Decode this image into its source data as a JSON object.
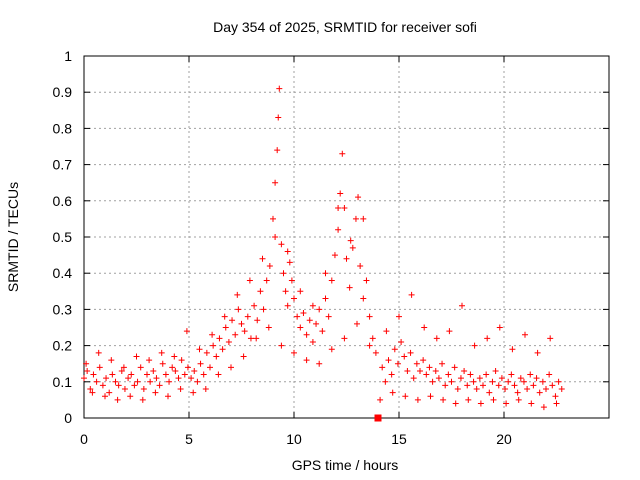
{
  "chart_data": {
    "type": "scatter",
    "title": "Day 354 of 2025, SRMTID for receiver sofi",
    "xlabel": "GPS time / hours",
    "ylabel": "SRMTID / TECUs",
    "xlim": [
      0,
      25
    ],
    "ylim": [
      0,
      1
    ],
    "xticks": [
      0,
      5,
      10,
      15,
      20
    ],
    "xtick_labels": [
      "0",
      "5",
      "10",
      "15",
      "20"
    ],
    "yticks": [
      0,
      0.1,
      0.2,
      0.3,
      0.4,
      0.5,
      0.6,
      0.7,
      0.8,
      0.9,
      1
    ],
    "ytick_labels": [
      "0",
      "0.1",
      "0.2",
      "0.3",
      "0.4",
      "0.5",
      "0.6",
      "0.7",
      "0.8",
      "0.9",
      "1"
    ],
    "grid": true,
    "marker": "plus",
    "color": "#ff0000",
    "series": [
      {
        "name": "SRMTID",
        "x": [
          0.0,
          0.15,
          0.3,
          0.45,
          0.6,
          0.75,
          0.9,
          1.05,
          1.2,
          1.35,
          1.5,
          1.65,
          1.8,
          1.95,
          2.1,
          2.25,
          2.4,
          2.55,
          2.7,
          2.85,
          3.0,
          3.15,
          3.3,
          3.45,
          3.6,
          3.75,
          3.9,
          4.05,
          4.2,
          4.35,
          4.5,
          4.65,
          4.8,
          4.95,
          5.1,
          5.25,
          5.4,
          5.55,
          5.7,
          5.85,
          6.0,
          6.15,
          6.3,
          6.45,
          6.6,
          6.75,
          6.9,
          7.05,
          7.2,
          7.35,
          7.5,
          7.65,
          7.8,
          7.95,
          8.1,
          8.25,
          8.4,
          8.55,
          8.7,
          8.85,
          9.0,
          9.1,
          9.2,
          9.25,
          9.3,
          9.4,
          9.5,
          9.6,
          9.7,
          9.8,
          9.9,
          10.0,
          10.15,
          10.3,
          10.45,
          10.6,
          10.75,
          10.9,
          11.05,
          11.2,
          11.35,
          11.5,
          11.65,
          11.8,
          11.95,
          12.1,
          12.2,
          12.3,
          12.4,
          12.5,
          12.65,
          12.8,
          12.95,
          13.05,
          13.15,
          13.3,
          13.45,
          13.6,
          13.75,
          13.9,
          14.0,
          14.2,
          14.35,
          14.5,
          14.65,
          14.8,
          14.95,
          15.1,
          15.25,
          15.4,
          15.55,
          15.7,
          15.85,
          16.0,
          16.15,
          16.3,
          16.45,
          16.6,
          16.75,
          16.9,
          17.05,
          17.2,
          17.35,
          17.5,
          17.65,
          17.8,
          17.95,
          18.1,
          18.25,
          18.4,
          18.55,
          18.7,
          18.85,
          19.0,
          19.15,
          19.3,
          19.45,
          19.6,
          19.75,
          19.9,
          20.05,
          20.2,
          20.35,
          20.5,
          20.65,
          20.8,
          20.95,
          21.1,
          21.25,
          21.4,
          21.55,
          21.7,
          21.85,
          22.0,
          22.15,
          22.3,
          22.45,
          22.6,
          22.75,
          0.1,
          0.4,
          0.7,
          1.0,
          1.3,
          1.6,
          1.9,
          2.2,
          2.5,
          2.8,
          3.1,
          3.4,
          3.7,
          4.0,
          4.3,
          4.6,
          4.9,
          5.2,
          5.5,
          5.8,
          6.1,
          6.4,
          6.7,
          7.0,
          7.3,
          7.6,
          7.9,
          8.2,
          8.5,
          8.8,
          9.1,
          9.4,
          9.7,
          10.0,
          10.3,
          10.6,
          10.9,
          11.2,
          11.5,
          11.8,
          12.1,
          12.4,
          12.7,
          13.0,
          13.3,
          13.6,
          14.1,
          14.4,
          14.7,
          15.0,
          15.3,
          15.6,
          15.9,
          16.2,
          16.5,
          16.8,
          17.1,
          17.4,
          17.7,
          18.0,
          18.3,
          18.6,
          18.9,
          19.2,
          19.5,
          19.8,
          20.1,
          20.4,
          20.7,
          21.0,
          21.3,
          21.6,
          21.9,
          22.2,
          22.5
        ],
        "y": [
          0.11,
          0.13,
          0.08,
          0.12,
          0.1,
          0.14,
          0.09,
          0.11,
          0.07,
          0.12,
          0.1,
          0.09,
          0.13,
          0.08,
          0.11,
          0.12,
          0.09,
          0.1,
          0.14,
          0.08,
          0.12,
          0.1,
          0.13,
          0.11,
          0.09,
          0.15,
          0.12,
          0.1,
          0.14,
          0.13,
          0.11,
          0.16,
          0.12,
          0.14,
          0.11,
          0.13,
          0.1,
          0.15,
          0.12,
          0.18,
          0.14,
          0.2,
          0.17,
          0.22,
          0.19,
          0.25,
          0.21,
          0.27,
          0.23,
          0.3,
          0.26,
          0.24,
          0.28,
          0.22,
          0.31,
          0.27,
          0.35,
          0.3,
          0.38,
          0.42,
          0.55,
          0.65,
          0.74,
          0.83,
          0.91,
          0.48,
          0.4,
          0.35,
          0.31,
          0.43,
          0.38,
          0.33,
          0.28,
          0.25,
          0.29,
          0.23,
          0.27,
          0.21,
          0.26,
          0.3,
          0.24,
          0.33,
          0.28,
          0.38,
          0.45,
          0.52,
          0.62,
          0.73,
          0.58,
          0.44,
          0.36,
          0.47,
          0.55,
          0.61,
          0.42,
          0.33,
          0.38,
          0.28,
          0.22,
          0.18,
          0.0,
          0.14,
          0.1,
          0.16,
          0.12,
          0.19,
          0.15,
          0.21,
          0.17,
          0.13,
          0.18,
          0.11,
          0.15,
          0.13,
          0.16,
          0.12,
          0.14,
          0.1,
          0.13,
          0.11,
          0.15,
          0.09,
          0.12,
          0.1,
          0.14,
          0.08,
          0.11,
          0.13,
          0.09,
          0.12,
          0.1,
          0.08,
          0.11,
          0.09,
          0.12,
          0.07,
          0.1,
          0.13,
          0.09,
          0.11,
          0.08,
          0.1,
          0.12,
          0.09,
          0.07,
          0.11,
          0.1,
          0.08,
          0.12,
          0.09,
          0.11,
          0.07,
          0.1,
          0.08,
          0.12,
          0.09,
          0.06,
          0.1,
          0.08,
          0.15,
          0.07,
          0.18,
          0.06,
          0.16,
          0.05,
          0.14,
          0.06,
          0.17,
          0.05,
          0.16,
          0.07,
          0.18,
          0.06,
          0.17,
          0.08,
          0.24,
          0.07,
          0.19,
          0.08,
          0.23,
          0.12,
          0.28,
          0.14,
          0.34,
          0.17,
          0.38,
          0.22,
          0.44,
          0.25,
          0.5,
          0.2,
          0.46,
          0.18,
          0.35,
          0.16,
          0.31,
          0.15,
          0.4,
          0.19,
          0.58,
          0.22,
          0.49,
          0.26,
          0.55,
          0.2,
          0.05,
          0.24,
          0.07,
          0.28,
          0.06,
          0.34,
          0.05,
          0.25,
          0.06,
          0.22,
          0.05,
          0.24,
          0.04,
          0.31,
          0.05,
          0.2,
          0.04,
          0.22,
          0.05,
          0.25,
          0.04,
          0.19,
          0.05,
          0.23,
          0.04,
          0.18,
          0.03,
          0.22,
          0.04
        ]
      }
    ],
    "outlier_marker": {
      "x": 14.0,
      "y": 0.0,
      "shape": "square"
    }
  }
}
